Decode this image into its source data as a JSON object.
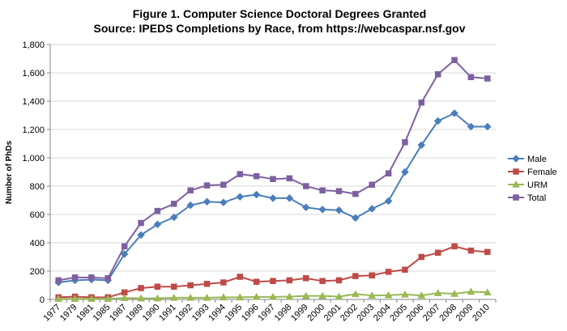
{
  "chart_data": {
    "type": "line",
    "title": "Figure 1. Computer Science Doctoral Degrees Granted",
    "subtitle": "Source: IPEDS Completions by Race, from https://webcaspar.nsf.gov",
    "xlabel": "",
    "ylabel": "Number of PhDs",
    "ylim": [
      0,
      1800
    ],
    "ytick_step": 200,
    "yticks": [
      "0",
      "200",
      "400",
      "600",
      "800",
      "1,000",
      "1,200",
      "1,400",
      "1,600",
      "1,800"
    ],
    "grid": true,
    "legend_position": "right",
    "categories": [
      "1977",
      "1979",
      "1981",
      "1985",
      "1987",
      "1989",
      "1990",
      "1991",
      "1992",
      "1993",
      "1994",
      "1995",
      "1996",
      "1997",
      "1998",
      "1999",
      "2000",
      "2001",
      "2002",
      "2003",
      "2004",
      "2005",
      "2006",
      "2007",
      "2008",
      "2009",
      "2010"
    ],
    "series": [
      {
        "name": "Male",
        "color": "#4a7ebb",
        "marker": "diamond",
        "values": [
          120,
          135,
          140,
          135,
          320,
          455,
          530,
          580,
          665,
          690,
          685,
          725,
          740,
          715,
          715,
          650,
          635,
          630,
          575,
          640,
          695,
          900,
          1090,
          1260,
          1315,
          1220,
          1220
        ]
      },
      {
        "name": "Female",
        "color": "#be4b48",
        "marker": "square",
        "values": [
          15,
          20,
          15,
          15,
          50,
          80,
          90,
          90,
          100,
          110,
          120,
          160,
          125,
          130,
          135,
          150,
          130,
          135,
          165,
          170,
          195,
          210,
          300,
          330,
          375,
          345,
          335
        ]
      },
      {
        "name": "URM",
        "color": "#98b954",
        "marker": "triangle",
        "values": [
          5,
          5,
          5,
          5,
          10,
          8,
          8,
          12,
          12,
          12,
          15,
          15,
          18,
          18,
          20,
          25,
          25,
          20,
          38,
          28,
          30,
          35,
          28,
          45,
          40,
          55,
          50
        ]
      },
      {
        "name": "Total",
        "color": "#7d60a0",
        "marker": "square",
        "values": [
          135,
          155,
          155,
          150,
          375,
          540,
          625,
          675,
          770,
          805,
          810,
          885,
          870,
          850,
          855,
          800,
          770,
          765,
          745,
          810,
          890,
          1110,
          1390,
          1590,
          1690,
          1570,
          1560
        ]
      }
    ]
  }
}
